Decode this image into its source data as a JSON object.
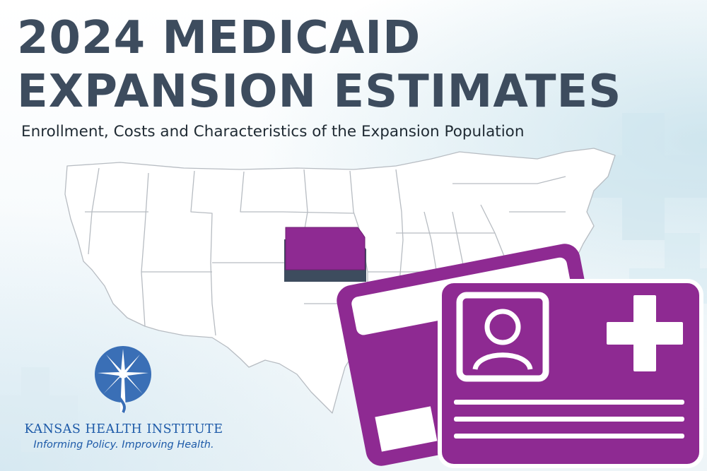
{
  "header": {
    "title_line1": "2024 MEDICAID",
    "title_line2": "EXPANSION ESTIMATES",
    "subtitle": "Enrollment, Costs and Characteristics of the Expansion Population"
  },
  "map": {
    "highlighted_state": "Kansas",
    "highlight_color": "#8e2a92"
  },
  "cards": {
    "color": "#8e2a92"
  },
  "logo": {
    "org_name": "KANSAS HEALTH INSTITUTE",
    "tagline": "Informing Policy. Improving Health.",
    "color": "#1d5aa8"
  }
}
